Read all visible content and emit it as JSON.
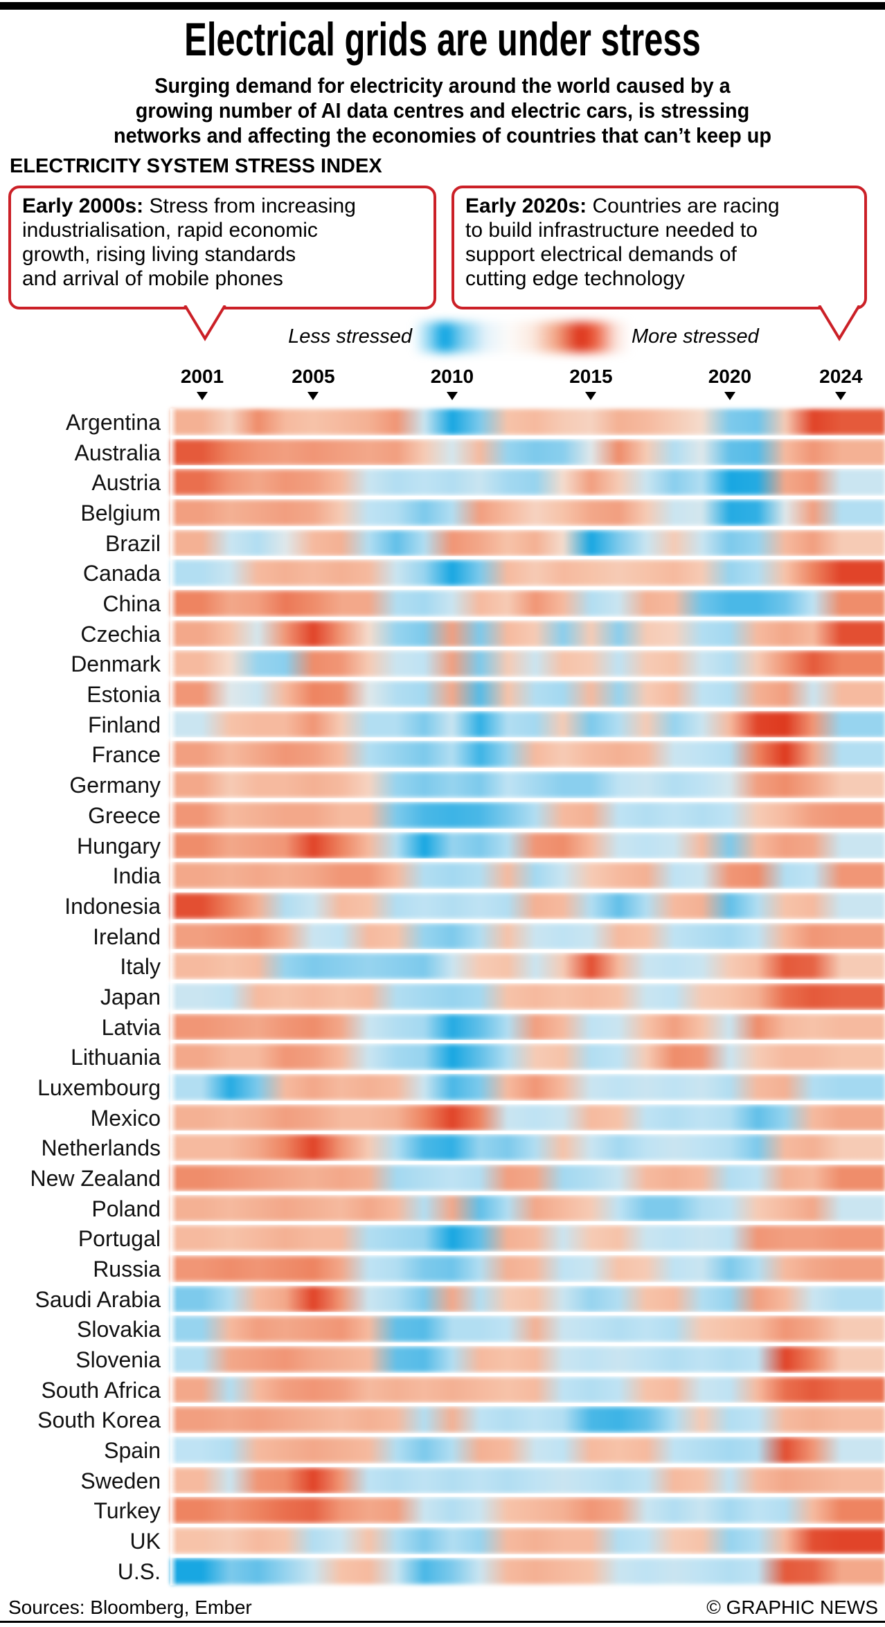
{
  "header": {
    "title": "Electrical grids are under stress",
    "subtitle_lines": [
      "Surging demand for electricity around the world caused by a",
      "growing number of AI data centres and electric cars, is stressing",
      "networks and affecting the economies of countries that can’t keep up"
    ],
    "section_label": "ELECTRICITY SYSTEM STRESS INDEX"
  },
  "callouts": [
    {
      "lead": "Early 2000s:",
      "lines": [
        "Stress from increasing",
        "industrialisation, rapid economic",
        "growth, rising living standards",
        "and arrival of mobile phones"
      ]
    },
    {
      "lead": "Early 2020s:",
      "lines": [
        "Countries are racing",
        "to build infrastructure needed to",
        "support electrical demands of",
        "cutting edge technology"
      ]
    }
  ],
  "legend": {
    "less_label": "Less stressed",
    "more_label": "More stressed"
  },
  "colors": {
    "blue": "#009fe0",
    "blue_mid": "#62c0e9",
    "blue_soft": "#bfe3f4",
    "neutral": "#f4ece5",
    "red_soft": "#f7c3a9",
    "red_mid": "#ee8461",
    "red": "#dc2f16",
    "callout_border": "#cb2027",
    "text": "#000000"
  },
  "footer": {
    "sources": "Sources: Bloomberg, Ember",
    "credit": "© GRAPHIC NEWS"
  },
  "chart_data": {
    "type": "heatmap",
    "title": "ELECTRICITY SYSTEM STRESS INDEX",
    "x_start": 2001,
    "x_end": 2024,
    "x_ticks": [
      2001,
      2005,
      2010,
      2015,
      2020,
      2024
    ],
    "scale": {
      "min": -1,
      "max": 1,
      "min_label": "Less stressed",
      "max_label": "More stressed"
    },
    "rows": [
      {
        "country": "Argentina",
        "values": [
          0.35,
          0.15,
          0.55,
          0.3,
          0.25,
          0.3,
          0.35,
          0.5,
          -0.2,
          -0.9,
          -0.5,
          0.25,
          0.3,
          0.2,
          0.15,
          0.35,
          0.3,
          0.2,
          0.1,
          -0.5,
          -0.55,
          0.2,
          0.9,
          0.8
        ]
      },
      {
        "country": "Australia",
        "values": [
          0.8,
          0.6,
          0.5,
          0.45,
          0.5,
          0.45,
          0.4,
          0.45,
          0.2,
          -0.15,
          0.3,
          -0.4,
          -0.5,
          -0.45,
          -0.1,
          0.55,
          0.2,
          -0.3,
          -0.1,
          -0.6,
          -0.65,
          0.3,
          0.5,
          0.35
        ]
      },
      {
        "country": "Austria",
        "values": [
          0.7,
          0.5,
          0.4,
          0.5,
          0.45,
          0.3,
          -0.2,
          -0.3,
          -0.25,
          -0.3,
          -0.2,
          -0.35,
          -0.4,
          0.1,
          0.45,
          0.2,
          -0.2,
          -0.45,
          -0.3,
          -0.9,
          -0.85,
          0.4,
          0.5,
          -0.2
        ]
      },
      {
        "country": "Belgium",
        "values": [
          0.45,
          0.35,
          0.4,
          0.45,
          0.4,
          0.2,
          -0.25,
          -0.3,
          -0.5,
          -0.3,
          0.45,
          0.3,
          0.15,
          0.25,
          0.4,
          0.45,
          0.2,
          -0.2,
          -0.15,
          -0.85,
          -0.8,
          -0.1,
          0.45,
          -0.3
        ]
      },
      {
        "country": "Brazil",
        "values": [
          0.35,
          -0.2,
          -0.3,
          -0.1,
          0.3,
          0.35,
          -0.3,
          -0.6,
          -0.3,
          0.5,
          0.4,
          0.25,
          0.35,
          0.1,
          -0.9,
          -0.5,
          -0.2,
          0.2,
          -0.2,
          -0.5,
          -0.4,
          0.3,
          0.45,
          0.2
        ]
      },
      {
        "country": "Canada",
        "values": [
          -0.3,
          -0.2,
          0.3,
          0.35,
          0.3,
          0.35,
          0.3,
          -0.2,
          -0.4,
          -0.9,
          -0.5,
          0.3,
          0.2,
          0.3,
          0.25,
          0.2,
          0.25,
          0.3,
          0.2,
          -0.4,
          -0.3,
          0.25,
          0.6,
          0.9
        ]
      },
      {
        "country": "China",
        "values": [
          0.6,
          0.4,
          0.45,
          0.65,
          0.55,
          0.4,
          0.4,
          -0.3,
          -0.35,
          -0.2,
          0.3,
          0.2,
          0.5,
          0.3,
          -0.3,
          -0.2,
          0.35,
          0.3,
          -0.55,
          -0.7,
          -0.7,
          -0.55,
          -0.25,
          0.55
        ]
      },
      {
        "country": "Czechia",
        "values": [
          0.4,
          0.25,
          -0.15,
          0.5,
          0.9,
          0.5,
          0.1,
          -0.4,
          -0.5,
          0.45,
          -0.5,
          0.3,
          0.2,
          -0.45,
          0.2,
          -0.45,
          0.2,
          0.15,
          -0.3,
          -0.35,
          0.3,
          0.4,
          0.3,
          0.85
        ]
      },
      {
        "country": "Denmark",
        "values": [
          0.3,
          0.1,
          -0.4,
          -0.45,
          0.55,
          0.5,
          0.2,
          -0.2,
          -0.25,
          0.45,
          -0.5,
          0.2,
          -0.2,
          0.25,
          0.2,
          -0.25,
          0.2,
          0.25,
          -0.2,
          -0.3,
          0.2,
          0.5,
          0.8,
          0.6
        ]
      },
      {
        "country": "Estonia",
        "values": [
          0.5,
          -0.1,
          -0.2,
          0.3,
          0.6,
          0.55,
          -0.1,
          -0.3,
          -0.35,
          0.4,
          -0.65,
          0.25,
          -0.3,
          -0.35,
          0.3,
          -0.4,
          0.2,
          0.3,
          -0.25,
          -0.3,
          0.35,
          0.45,
          -0.2,
          0.3
        ]
      },
      {
        "country": "Finland",
        "values": [
          -0.2,
          0.25,
          0.3,
          0.3,
          0.5,
          0.2,
          -0.3,
          -0.3,
          -0.5,
          -0.2,
          -0.8,
          -0.3,
          -0.35,
          0.2,
          -0.5,
          -0.3,
          0.2,
          -0.4,
          -0.2,
          0.3,
          0.9,
          0.95,
          0.5,
          -0.4
        ]
      },
      {
        "country": "France",
        "values": [
          0.45,
          0.3,
          0.4,
          0.5,
          0.45,
          0.3,
          -0.3,
          -0.4,
          -0.5,
          -0.3,
          -0.75,
          -0.4,
          0.3,
          0.2,
          0.3,
          0.35,
          0.3,
          -0.2,
          -0.25,
          -0.3,
          0.6,
          0.95,
          0.4,
          -0.3
        ]
      },
      {
        "country": "Germany",
        "values": [
          0.4,
          0.2,
          0.3,
          0.3,
          0.35,
          0.3,
          0.15,
          -0.4,
          -0.5,
          -0.4,
          -0.5,
          -0.25,
          -0.35,
          -0.45,
          -0.45,
          -0.25,
          -0.2,
          -0.3,
          -0.25,
          -0.15,
          0.45,
          0.55,
          0.4,
          0.2
        ]
      },
      {
        "country": "Greece",
        "values": [
          0.5,
          0.3,
          0.35,
          0.4,
          0.4,
          0.3,
          0.3,
          -0.5,
          -0.7,
          -0.75,
          -0.7,
          -0.5,
          -0.3,
          0.3,
          0.35,
          -0.25,
          -0.3,
          -0.25,
          -0.3,
          -0.25,
          0.2,
          0.3,
          0.45,
          0.5
        ]
      },
      {
        "country": "Hungary",
        "values": [
          0.55,
          0.4,
          0.45,
          0.5,
          0.9,
          0.6,
          0.3,
          -0.3,
          -0.9,
          -0.4,
          -0.5,
          -0.3,
          0.5,
          0.55,
          0.3,
          -0.2,
          -0.25,
          -0.2,
          0.3,
          -0.5,
          0.3,
          0.45,
          0.4,
          -0.2
        ]
      },
      {
        "country": "India",
        "values": [
          0.4,
          0.35,
          0.4,
          0.35,
          0.4,
          0.5,
          0.5,
          0.3,
          -0.3,
          -0.35,
          -0.3,
          0.3,
          -0.35,
          -0.2,
          0.2,
          0.3,
          0.35,
          -0.25,
          -0.2,
          0.5,
          0.55,
          -0.3,
          -0.25,
          0.5
        ]
      },
      {
        "country": "Indonesia",
        "values": [
          0.85,
          0.6,
          0.35,
          -0.3,
          -0.2,
          0.3,
          0.25,
          -0.3,
          -0.25,
          -0.3,
          -0.25,
          -0.3,
          0.35,
          0.3,
          -0.3,
          -0.6,
          -0.3,
          0.3,
          0.35,
          -0.6,
          -0.3,
          0.25,
          0.3,
          -0.2
        ]
      },
      {
        "country": "Ireland",
        "values": [
          0.45,
          0.5,
          0.55,
          0.35,
          -0.2,
          -0.25,
          0.3,
          0.25,
          -0.4,
          -0.5,
          -0.3,
          0.25,
          -0.2,
          -0.25,
          -0.2,
          0.3,
          0.25,
          -0.25,
          -0.3,
          -0.35,
          -0.25,
          0.3,
          0.5,
          0.45
        ]
      },
      {
        "country": "Italy",
        "values": [
          0.3,
          0.25,
          0.3,
          -0.4,
          -0.5,
          -0.45,
          -0.4,
          -0.45,
          -0.5,
          -0.2,
          0.2,
          0.25,
          -0.2,
          0.2,
          0.85,
          0.3,
          -0.2,
          -0.25,
          -0.2,
          0.2,
          0.3,
          0.8,
          0.75,
          0.2
        ]
      },
      {
        "country": "Japan",
        "values": [
          -0.2,
          -0.25,
          0.3,
          0.25,
          0.3,
          0.25,
          0.3,
          -0.3,
          -0.35,
          -0.4,
          -0.35,
          0.25,
          0.3,
          0.25,
          0.3,
          0.25,
          -0.2,
          -0.25,
          0.2,
          0.25,
          0.35,
          0.7,
          0.8,
          0.75
        ]
      },
      {
        "country": "Latvia",
        "values": [
          0.5,
          0.45,
          0.4,
          0.5,
          0.55,
          0.4,
          -0.2,
          -0.3,
          -0.35,
          -0.85,
          -0.6,
          -0.3,
          0.45,
          0.3,
          -0.25,
          -0.2,
          0.25,
          0.45,
          0.25,
          -0.2,
          0.55,
          0.3,
          0.25,
          0.3
        ]
      },
      {
        "country": "Lithuania",
        "values": [
          0.4,
          0.3,
          0.3,
          0.5,
          0.45,
          0.3,
          -0.2,
          -0.35,
          -0.4,
          -0.9,
          -0.6,
          -0.3,
          0.2,
          0.25,
          -0.3,
          -0.25,
          0.2,
          0.55,
          0.5,
          -0.2,
          0.2,
          0.3,
          0.3,
          0.25
        ]
      },
      {
        "country": "Luxembourg",
        "values": [
          -0.3,
          -0.85,
          -0.5,
          0.3,
          0.4,
          0.3,
          0.35,
          0.3,
          -0.2,
          -0.7,
          -0.5,
          0.3,
          0.5,
          0.3,
          -0.2,
          -0.25,
          -0.2,
          -0.25,
          -0.2,
          -0.3,
          0.3,
          0.35,
          -0.3,
          -0.35
        ]
      },
      {
        "country": "Mexico",
        "values": [
          0.35,
          0.3,
          0.35,
          0.45,
          0.4,
          0.3,
          0.3,
          0.35,
          0.6,
          0.9,
          0.6,
          -0.2,
          -0.25,
          -0.2,
          0.3,
          0.25,
          -0.25,
          -0.3,
          -0.25,
          -0.3,
          -0.6,
          -0.4,
          0.3,
          0.4
        ]
      },
      {
        "country": "Netherlands",
        "values": [
          0.3,
          0.3,
          0.4,
          0.6,
          0.9,
          0.5,
          0.2,
          -0.3,
          -0.7,
          -0.8,
          -0.4,
          -0.5,
          -0.3,
          0.25,
          -0.2,
          -0.35,
          -0.25,
          -0.2,
          -0.25,
          -0.3,
          -0.5,
          0.3,
          0.35,
          0.2
        ]
      },
      {
        "country": "New Zealand",
        "values": [
          0.55,
          0.5,
          0.45,
          0.4,
          0.35,
          0.4,
          0.35,
          -0.35,
          -0.3,
          -0.25,
          -0.3,
          0.45,
          0.4,
          -0.35,
          -0.3,
          -0.2,
          0.3,
          0.35,
          0.3,
          -0.3,
          -0.25,
          0.35,
          0.3,
          0.55
        ]
      },
      {
        "country": "Poland",
        "values": [
          0.35,
          0.3,
          0.35,
          0.4,
          0.35,
          0.3,
          0.4,
          0.3,
          -0.3,
          0.4,
          -0.6,
          -0.3,
          0.4,
          0.3,
          0.2,
          -0.25,
          -0.5,
          -0.5,
          -0.3,
          -0.25,
          0.2,
          0.3,
          0.4,
          -0.2
        ]
      },
      {
        "country": "Portugal",
        "values": [
          0.3,
          0.25,
          0.3,
          0.35,
          0.3,
          0.3,
          -0.3,
          -0.35,
          -0.4,
          -0.9,
          -0.6,
          0.35,
          0.3,
          -0.2,
          0.2,
          0.25,
          -0.2,
          -0.25,
          -0.2,
          -0.25,
          0.5,
          0.45,
          0.45,
          0.5
        ]
      },
      {
        "country": "Russia",
        "values": [
          0.5,
          0.55,
          0.5,
          0.55,
          0.6,
          0.4,
          -0.25,
          -0.3,
          -0.5,
          -0.55,
          -0.3,
          0.35,
          0.3,
          -0.25,
          -0.2,
          0.25,
          0.2,
          -0.25,
          -0.2,
          -0.5,
          -0.3,
          0.3,
          0.4,
          0.45
        ]
      },
      {
        "country": "Saudi Arabia",
        "values": [
          -0.5,
          -0.3,
          0.3,
          0.4,
          0.9,
          0.5,
          -0.2,
          -0.3,
          -0.5,
          0.4,
          -0.3,
          0.2,
          0.25,
          -0.2,
          -0.4,
          -0.3,
          0.25,
          0.3,
          -0.3,
          -0.4,
          0.45,
          0.3,
          -0.2,
          -0.3
        ]
      },
      {
        "country": "Slovakia",
        "values": [
          -0.4,
          0.3,
          0.45,
          0.4,
          0.45,
          0.5,
          0.3,
          -0.6,
          -0.65,
          -0.3,
          -0.3,
          -0.25,
          0.35,
          -0.2,
          -0.25,
          -0.3,
          -0.25,
          -0.3,
          0.2,
          0.25,
          0.3,
          0.5,
          0.4,
          0.2
        ]
      },
      {
        "country": "Slovenia",
        "values": [
          -0.3,
          0.4,
          0.45,
          0.5,
          0.4,
          0.35,
          0.3,
          -0.6,
          -0.65,
          -0.3,
          0.3,
          0.25,
          0.3,
          -0.2,
          -0.25,
          -0.2,
          -0.25,
          -0.3,
          -0.25,
          -0.3,
          -0.25,
          0.9,
          0.6,
          0.2
        ]
      },
      {
        "country": "South Africa",
        "values": [
          0.4,
          -0.3,
          0.3,
          0.45,
          0.5,
          0.45,
          0.3,
          0.35,
          0.3,
          0.35,
          0.3,
          0.25,
          0.3,
          -0.25,
          -0.3,
          -0.25,
          0.25,
          0.3,
          -0.2,
          -0.25,
          0.3,
          0.7,
          0.8,
          0.7
        ]
      },
      {
        "country": "South Korea",
        "values": [
          0.45,
          0.4,
          0.45,
          0.4,
          0.35,
          0.3,
          0.35,
          0.3,
          -0.3,
          0.35,
          -0.25,
          -0.3,
          -0.25,
          -0.3,
          -0.7,
          -0.75,
          -0.6,
          -0.3,
          0.2,
          -0.3,
          -0.25,
          0.3,
          0.35,
          0.3
        ]
      },
      {
        "country": "Spain",
        "values": [
          -0.25,
          -0.3,
          0.3,
          0.35,
          0.4,
          0.35,
          0.3,
          -0.3,
          -0.5,
          -0.3,
          0.35,
          0.3,
          -0.2,
          -0.25,
          0.3,
          0.25,
          0.3,
          -0.25,
          -0.3,
          -0.35,
          -0.3,
          0.85,
          0.5,
          -0.2
        ]
      },
      {
        "country": "Sweden",
        "values": [
          0.3,
          -0.2,
          0.5,
          0.55,
          0.9,
          0.5,
          -0.25,
          -0.3,
          -0.25,
          -0.3,
          -0.25,
          -0.3,
          -0.25,
          -0.2,
          -0.25,
          -0.3,
          -0.25,
          0.3,
          0.25,
          -0.25,
          0.3,
          0.4,
          0.35,
          0.3
        ]
      },
      {
        "country": "Turkey",
        "values": [
          0.6,
          0.5,
          0.6,
          0.7,
          0.75,
          0.5,
          0.4,
          0.45,
          -0.2,
          -0.3,
          -0.2,
          0.25,
          0.3,
          0.35,
          0.5,
          0.4,
          -0.2,
          -0.3,
          -0.2,
          -0.35,
          -0.25,
          -0.3,
          0.3,
          0.6
        ]
      },
      {
        "country": "UK",
        "values": [
          0.25,
          0.2,
          0.3,
          0.25,
          -0.3,
          -0.2,
          0.25,
          -0.3,
          -0.5,
          -0.3,
          -0.4,
          0.3,
          0.35,
          0.3,
          0.3,
          -0.3,
          -0.25,
          0.2,
          0.25,
          -0.4,
          -0.3,
          0.3,
          0.85,
          0.9
        ]
      },
      {
        "country": "U.S.",
        "values": [
          -0.9,
          -0.5,
          -0.6,
          -0.4,
          -0.2,
          0.25,
          0.3,
          -0.2,
          -0.7,
          -0.5,
          -0.2,
          0.3,
          0.35,
          0.3,
          0.25,
          -0.2,
          -0.25,
          -0.2,
          -0.25,
          -0.3,
          -0.25,
          0.8,
          0.75,
          0.4
        ]
      }
    ]
  }
}
